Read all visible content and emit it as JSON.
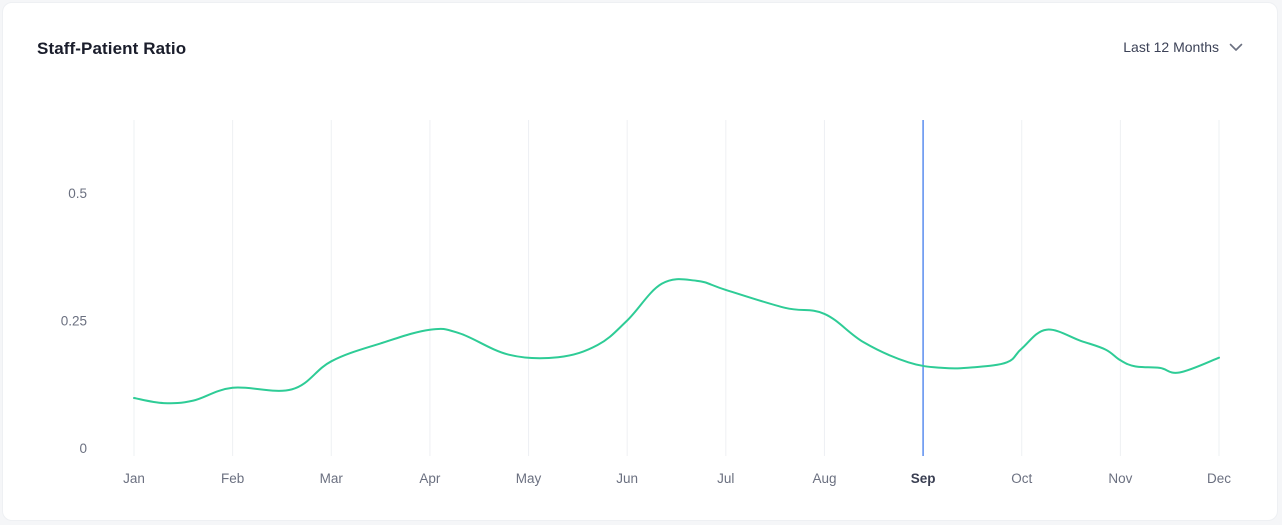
{
  "header": {
    "title": "Staff-Patient Ratio",
    "period_label": "Last 12 Months"
  },
  "colors": {
    "line": "#2ecc96",
    "highlight": "#5b8def",
    "grid": "#eef0f3"
  },
  "chart_data": {
    "type": "line",
    "title": "Staff-Patient Ratio",
    "xlabel": "",
    "ylabel": "",
    "categories": [
      "Jan",
      "Feb",
      "Mar",
      "Apr",
      "May",
      "Jun",
      "Jul",
      "Aug",
      "Sep",
      "Oct",
      "Nov",
      "Dec"
    ],
    "highlighted_category": "Sep",
    "y_ticks": [
      "0",
      "0.25",
      "0.5"
    ],
    "ylim": [
      0,
      0.65
    ],
    "grid": true,
    "series": [
      {
        "x": [
          0,
          0.3,
          0.6,
          1,
          1.6,
          2,
          2.5,
          3,
          3.3,
          3.8,
          4.3,
          4.7,
          5,
          5.35,
          5.7,
          6,
          6.6,
          7,
          7.4,
          7.85,
          8.2,
          8.5,
          8.85,
          9,
          9.25,
          9.6,
          9.85,
          10,
          10.15,
          10.4,
          10.6,
          11
        ],
        "values": [
          0.098,
          0.088,
          0.093,
          0.118,
          0.115,
          0.17,
          0.205,
          0.232,
          0.225,
          0.183,
          0.178,
          0.202,
          0.25,
          0.322,
          0.328,
          0.31,
          0.275,
          0.263,
          0.207,
          0.168,
          0.157,
          0.158,
          0.168,
          0.195,
          0.232,
          0.21,
          0.193,
          0.172,
          0.16,
          0.157,
          0.148,
          0.177
        ]
      }
    ]
  }
}
